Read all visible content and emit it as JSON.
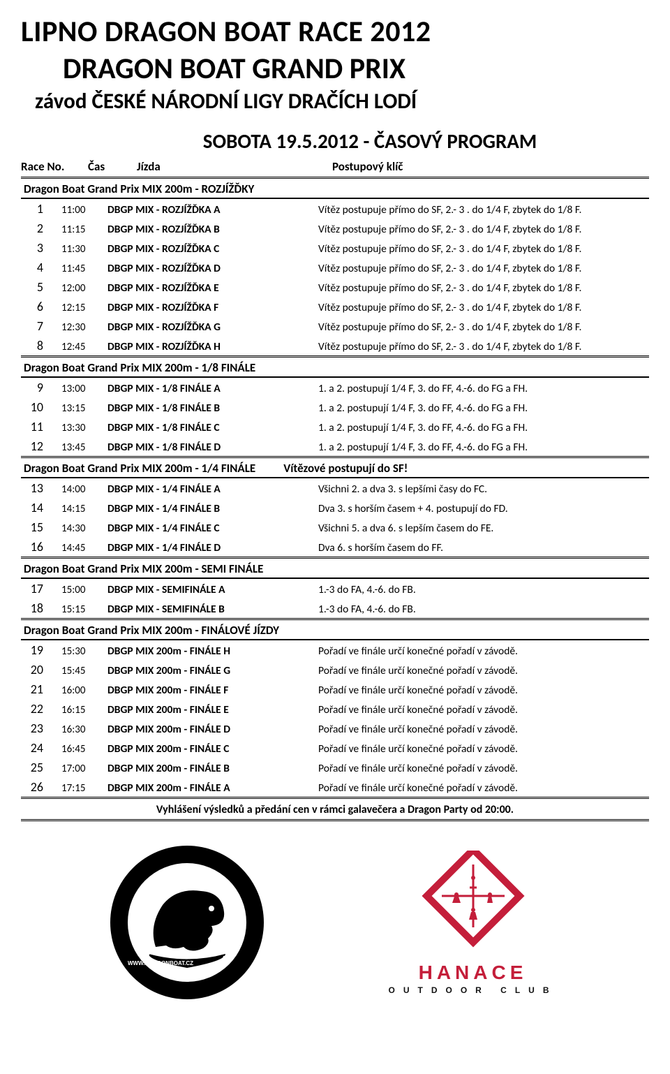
{
  "title_line1": "LIPNO DRAGON BOAT RACE  2012",
  "title_line2": "DRAGON BOAT GRAND PRIX",
  "title_line3": "závod ČESKÉ NÁRODNÍ LIGY DRAČÍCH LODÍ",
  "program_title": "SOBOTA 19.5.2012  - ČASOVÝ PROGRAM",
  "header": {
    "race_no": "Race No.",
    "cas": "Čas",
    "jizda": "Jízda",
    "postup": "Postupový klíč"
  },
  "sections": [
    {
      "title": "Dragon Boat Grand Prix MIX 200m - ROZJÍŽĎKY",
      "rows": [
        {
          "no": "1",
          "time": "11:00",
          "name": "DBGP MIX - ROZJÍŽĎKA A",
          "note": "Vítěz postupuje přímo do SF, 2.- 3 . do 1/4 F,  zbytek do 1/8 F."
        },
        {
          "no": "2",
          "time": "11:15",
          "name": "DBGP MIX - ROZJÍŽĎKA B",
          "note": "Vítěz postupuje přímo do SF, 2.- 3 . do 1/4 F,  zbytek do 1/8 F."
        },
        {
          "no": "3",
          "time": "11:30",
          "name": "DBGP MIX - ROZJÍŽĎKA C",
          "note": "Vítěz postupuje přímo do SF, 2.- 3 . do 1/4 F,  zbytek do 1/8 F."
        },
        {
          "no": "4",
          "time": "11:45",
          "name": "DBGP MIX - ROZJÍŽĎKA D",
          "note": "Vítěz postupuje přímo do SF, 2.- 3 . do 1/4 F,  zbytek do 1/8 F."
        },
        {
          "no": "5",
          "time": "12:00",
          "name": "DBGP MIX - ROZJÍŽĎKA E",
          "note": "Vítěz postupuje přímo do SF, 2.- 3 . do 1/4 F,  zbytek do 1/8 F."
        },
        {
          "no": "6",
          "time": "12:15",
          "name": "DBGP MIX - ROZJÍŽĎKA F",
          "note": "Vítěz postupuje přímo do SF, 2.- 3 . do 1/4 F,  zbytek do 1/8 F."
        },
        {
          "no": "7",
          "time": "12:30",
          "name": "DBGP MIX - ROZJÍŽĎKA G",
          "note": "Vítěz postupuje přímo do SF, 2.- 3 . do 1/4 F,  zbytek do 1/8 F."
        },
        {
          "no": "8",
          "time": "12:45",
          "name": "DBGP MIX - ROZJÍŽĎKA H",
          "note": "Vítěz postupuje přímo do SF, 2.- 3 . do 1/4 F,  zbytek do 1/8 F."
        }
      ]
    },
    {
      "title": "Dragon Boat Grand Prix MIX 200m - 1/8 FINÁLE",
      "rows": [
        {
          "no": "9",
          "time": "13:00",
          "name": "DBGP MIX  - 1/8 FINÁLE A",
          "note": "1. a 2. postupují 1/4 F, 3. do FF, 4.-6. do FG a FH."
        },
        {
          "no": "10",
          "time": "13:15",
          "name": "DBGP MIX  - 1/8 FINÁLE B",
          "note": "1. a 2. postupují 1/4 F, 3. do FF, 4.-6. do FG a FH."
        },
        {
          "no": "11",
          "time": "13:30",
          "name": "DBGP MIX  - 1/8 FINÁLE C",
          "note": "1. a 2. postupují 1/4 F, 3. do FF, 4.-6. do FG a FH."
        },
        {
          "no": "12",
          "time": "13:45",
          "name": "DBGP MIX  - 1/8 FINÁLE D",
          "note": "1. a 2. postupují 1/4 F, 3. do FF, 4.-6. do FG a FH."
        }
      ]
    },
    {
      "title": "Dragon Boat Grand Prix MIX 200m - 1/4 FINÁLE",
      "extra": "Vítězové  postupují do  SF!",
      "rows": [
        {
          "no": "13",
          "time": "14:00",
          "name": "DBGP MIX  - 1/4 FINÁLE A",
          "note": "Všichni 2. a dva 3. s lepšími časy do FC."
        },
        {
          "no": "14",
          "time": "14:15",
          "name": "DBGP MIX  - 1/4 FINÁLE B",
          "note": "Dva 3. s horším časem + 4. postupují do FD."
        },
        {
          "no": "15",
          "time": "14:30",
          "name": "DBGP MIX  - 1/4 FINÁLE C",
          "note": "Všichni 5. a dva 6. s lepším časem do FE."
        },
        {
          "no": "16",
          "time": "14:45",
          "name": "DBGP MIX  - 1/4 FINÁLE D",
          "note": "Dva 6. s horším časem do FF."
        }
      ]
    },
    {
      "title": "Dragon Boat Grand Prix MIX 200m - SEMI FINÁLE",
      "rows": [
        {
          "no": "17",
          "time": "15:00",
          "name": "DBGP MIX  - SEMIFINÁLE A",
          "note": "1.-3 do FA, 4.-6. do FB."
        },
        {
          "no": "18",
          "time": "15:15",
          "name": "DBGP  MIX - SEMIFINÁLE B",
          "note": "1.-3 do FA, 4.-6. do FB."
        }
      ]
    },
    {
      "title": "Dragon Boat Grand Prix MIX 200m - FINÁLOVÉ JÍZDY",
      "rows": [
        {
          "no": "19",
          "time": "15:30",
          "name": "DBGP MIX 200m - FINÁLE H",
          "note": "Pořadí ve finále určí konečné pořadí v závodě."
        },
        {
          "no": "20",
          "time": "15:45",
          "name": "DBGP MIX 200m - FINÁLE G",
          "note": "Pořadí ve finále určí konečné pořadí v závodě."
        },
        {
          "no": "21",
          "time": "16:00",
          "name": "DBGP MIX 200m - FINÁLE F",
          "note": "Pořadí ve finále určí konečné pořadí v závodě."
        },
        {
          "no": "22",
          "time": "16:15",
          "name": "DBGP MIX 200m - FINÁLE E",
          "note": "Pořadí ve finále určí konečné pořadí v závodě."
        },
        {
          "no": "23",
          "time": "16:30",
          "name": "DBGP MIX 200m - FINÁLE D",
          "note": "Pořadí ve finále určí konečné pořadí v závodě."
        },
        {
          "no": "24",
          "time": "16:45",
          "name": "DBGP MIX 200m - FINÁLE C",
          "note": "Pořadí ve finále určí konečné pořadí v závodě."
        },
        {
          "no": "25",
          "time": "17:00",
          "name": "DBGP MIX 200m - FINÁLE B",
          "note": "Pořadí ve finále určí konečné pořadí v závodě."
        },
        {
          "no": "26",
          "time": "17:15",
          "name": "DBGP MIX 200m - FINÁLE A",
          "note": "Pořadí ve finále určí konečné pořadí v závodě."
        }
      ]
    }
  ],
  "final_note": "Vyhlášení výsledků a předání cen v rámci galavečera a Dragon Party od 20:00.",
  "logos": {
    "dragon_alt": "Czech Dragon Boat Association",
    "hanace_name": "HANACE",
    "hanace_sub": "OUTDOOR CLUB",
    "colors": {
      "red": "#c41e3a",
      "black": "#000000",
      "white": "#ffffff"
    }
  }
}
